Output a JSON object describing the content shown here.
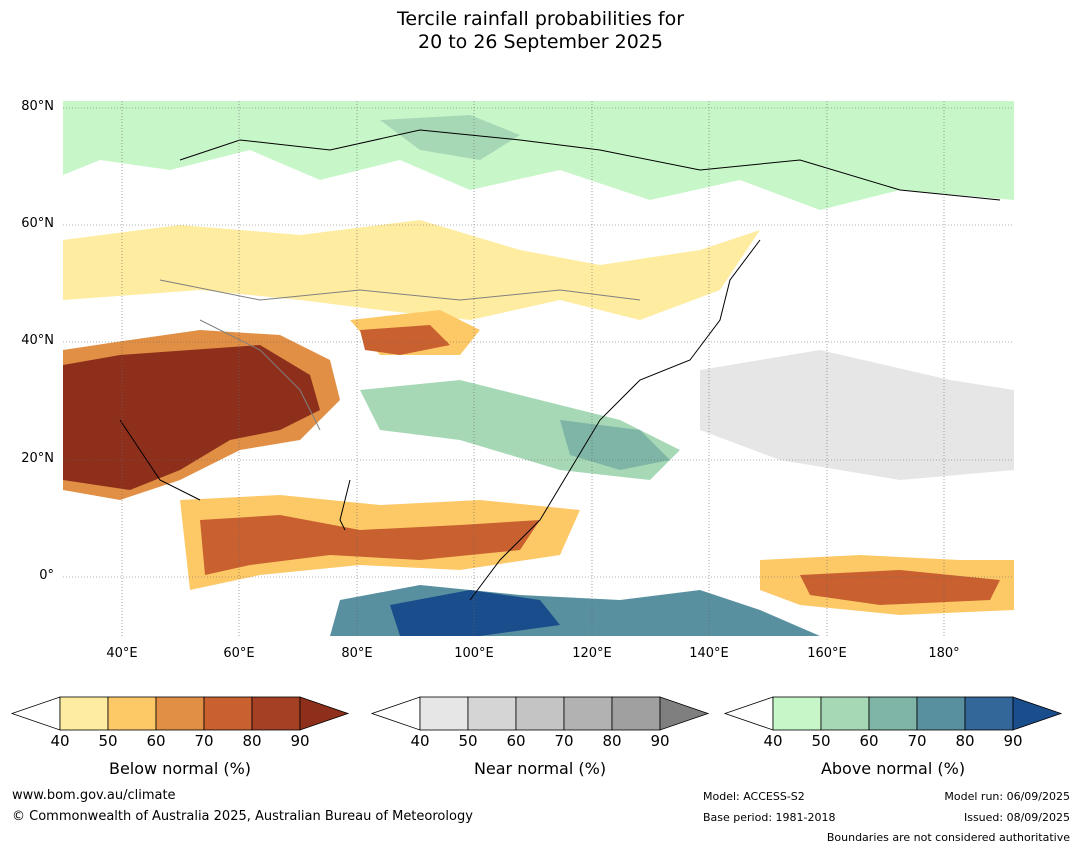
{
  "title_line1": "Tercile rainfall probabilities for",
  "title_line2": "20 to 26 September 2025",
  "lat_labels": [
    "80°N",
    "60°N",
    "40°N",
    "20°N",
    "0°"
  ],
  "lon_labels": [
    "40°E",
    "60°E",
    "80°E",
    "100°E",
    "120°E",
    "140°E",
    "160°E",
    "180°"
  ],
  "colorbars": [
    {
      "label": "Below normal (%)",
      "ticks": [
        "40",
        "50",
        "60",
        "70",
        "80",
        "90"
      ],
      "colors": [
        "#ffffff",
        "#feeca0",
        "#fdc967",
        "#e08f45",
        "#c86030",
        "#a64024",
        "#8e2f1c"
      ]
    },
    {
      "label": "Near normal (%)",
      "ticks": [
        "40",
        "50",
        "60",
        "70",
        "80",
        "90"
      ],
      "colors": [
        "#ffffff",
        "#e6e6e6",
        "#d5d5d5",
        "#c4c4c4",
        "#b2b2b2",
        "#a0a0a0",
        "#7f7f7f"
      ]
    },
    {
      "label": "Above normal (%)",
      "ticks": [
        "40",
        "50",
        "60",
        "70",
        "80",
        "90"
      ],
      "colors": [
        "#ffffff",
        "#c7f6c9",
        "#a7d8b6",
        "#7fb5a6",
        "#5990a0",
        "#336699",
        "#1a4d8c"
      ]
    }
  ],
  "footer": {
    "website": "www.bom.gov.au/climate",
    "copyright": "© Commonwealth of Australia 2025, Australian Bureau of Meteorology",
    "model": "Model: ACCESS-S2",
    "base_period": "Base period: 1981-2018",
    "model_run": "Model run: 06/09/2025",
    "issued": "Issued: 08/09/2025",
    "disclaimer": "Boundaries are not considered authoritative"
  }
}
